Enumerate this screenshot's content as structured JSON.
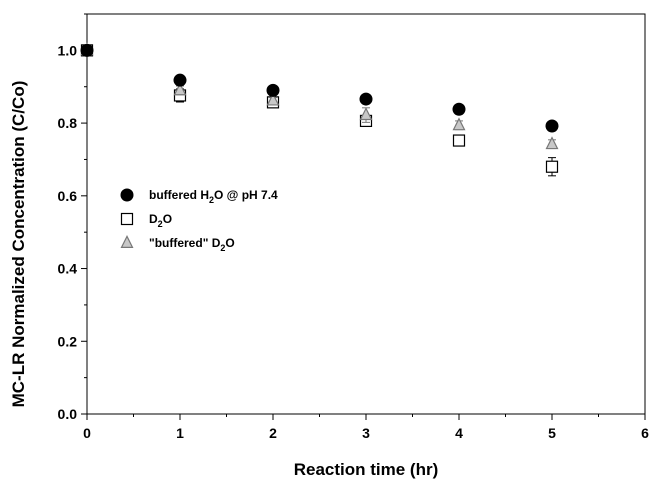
{
  "chart_data": {
    "type": "scatter",
    "title": "",
    "xlabel": "Reaction time (hr)",
    "ylabel": "MC-LR Normalized Concentration (C/Co)",
    "xlim": [
      0,
      6
    ],
    "ylim": [
      0,
      1.1
    ],
    "xticks": [
      "0",
      "1",
      "2",
      "3",
      "4",
      "5",
      "6"
    ],
    "yticks": [
      "0.0",
      "0.2",
      "0.4",
      "0.6",
      "0.8",
      "1.0"
    ],
    "grid": false,
    "legend_position": "middle-left",
    "series": [
      {
        "name": "buffered H₂O @ pH 7.4",
        "legend_parts": [
          [
            "buffered H",
            "normal"
          ],
          [
            "2",
            "sub"
          ],
          [
            "O @ pH 7.4",
            "normal"
          ]
        ],
        "marker": "filled-circle",
        "color": "#000000",
        "x": [
          0,
          1,
          2,
          3,
          4,
          5
        ],
        "y": [
          1.0,
          0.918,
          0.89,
          0.866,
          0.838,
          0.792
        ],
        "err": [
          0,
          0,
          0,
          0,
          0,
          0
        ]
      },
      {
        "name": "D₂O",
        "legend_parts": [
          [
            "D",
            "normal"
          ],
          [
            "2",
            "sub"
          ],
          [
            "O",
            "normal"
          ]
        ],
        "marker": "open-square",
        "color": "#000000",
        "x": [
          0,
          1,
          2,
          3,
          4,
          5
        ],
        "y": [
          1.0,
          0.876,
          0.857,
          0.806,
          0.752,
          0.68
        ],
        "err": [
          0,
          0.018,
          0.01,
          0.015,
          0.015,
          0.025
        ]
      },
      {
        "name": "\"buffered\" D₂O",
        "legend_parts": [
          [
            "\"buffered\" D",
            "normal"
          ],
          [
            "2",
            "sub"
          ],
          [
            "O",
            "normal"
          ]
        ],
        "marker": "open-triangle",
        "color": "#777777",
        "x": [
          0,
          1,
          2,
          3,
          4,
          5
        ],
        "y": [
          1.0,
          0.89,
          0.862,
          0.822,
          0.794,
          0.742
        ],
        "err": [
          0,
          0.012,
          0.008,
          0.02,
          0.012,
          0.012
        ]
      }
    ]
  }
}
